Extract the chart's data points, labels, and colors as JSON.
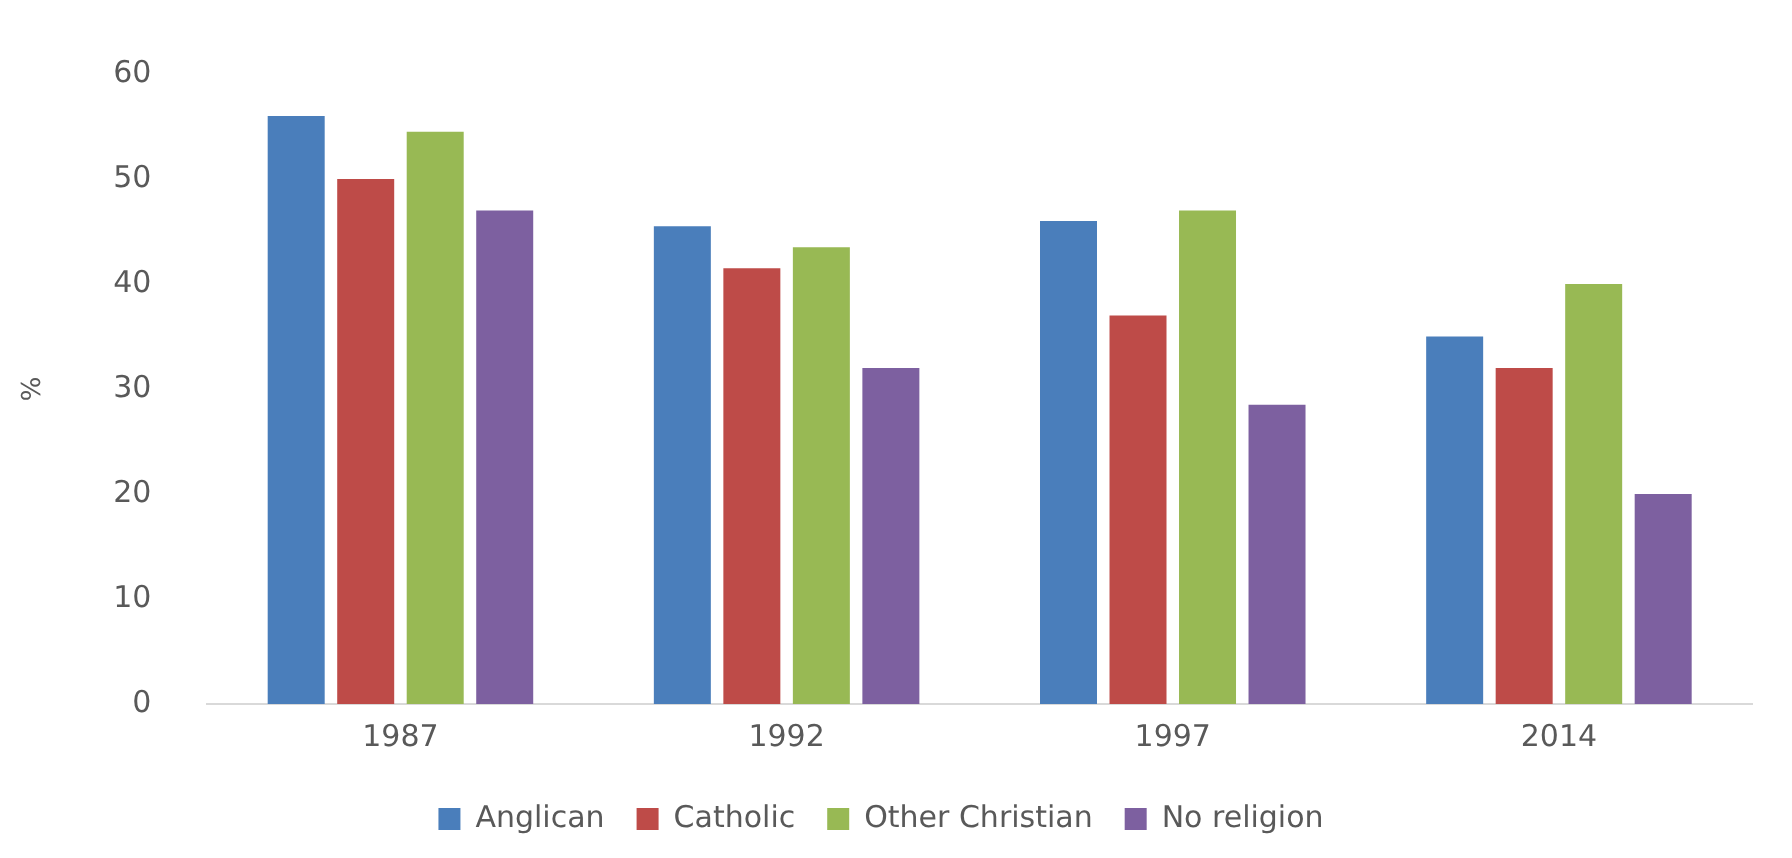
{
  "chart_data": {
    "type": "bar",
    "ylabel": "%",
    "categories": [
      "1987",
      "1992",
      "1997",
      "2014"
    ],
    "series": [
      {
        "name": "Anglican",
        "color": "#4a7ebb",
        "values": [
          56,
          45.5,
          46,
          35
        ]
      },
      {
        "name": "Catholic",
        "color": "#be4b48",
        "values": [
          50,
          41.5,
          37,
          32
        ]
      },
      {
        "name": "Other Christian",
        "color": "#98b954",
        "values": [
          54.5,
          43.5,
          47,
          40
        ]
      },
      {
        "name": "No religion",
        "color": "#7d60a0",
        "values": [
          47,
          32,
          28.5,
          20
        ]
      }
    ],
    "ylim": [
      0,
      60
    ],
    "yticks": [
      0,
      10,
      20,
      30,
      40,
      50,
      60
    ],
    "grid": false,
    "legend": "bottom"
  }
}
